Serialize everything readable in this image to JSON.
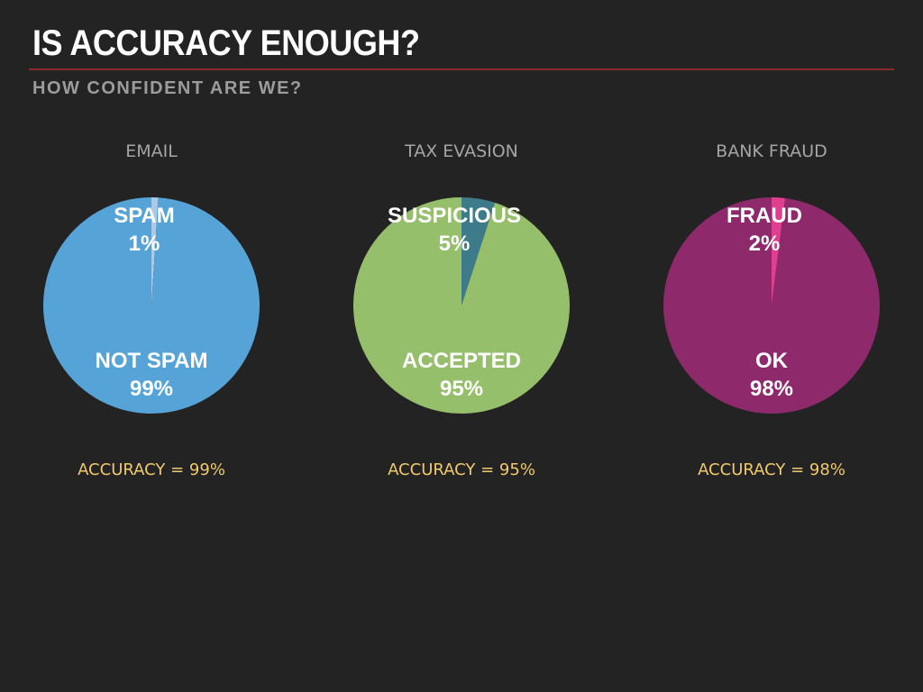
{
  "slide": {
    "title": "IS ACCURACY ENOUGH?",
    "subtitle": "HOW CONFIDENT ARE WE?"
  },
  "colors": {
    "email_main": "#56a3d8",
    "email_minor": "#a9cbe8",
    "tax_main": "#96bf6b",
    "tax_minor": "#3d7b8a",
    "fraud_main": "#8e2a6c",
    "fraud_minor": "#e03f8f",
    "accuracy_text": "#f0c96a"
  },
  "chart_data": [
    {
      "type": "pie",
      "title": "EMAIL",
      "slices": [
        {
          "label": "SPAM",
          "value": 1,
          "value_label": "1%",
          "color": "#a9cbe8"
        },
        {
          "label": "NOT SPAM",
          "value": 99,
          "value_label": "99%",
          "color": "#56a3d8"
        }
      ],
      "caption": "ACCURACY = 99%"
    },
    {
      "type": "pie",
      "title": "TAX EVASION",
      "slices": [
        {
          "label": "SUSPICIOUS",
          "value": 5,
          "value_label": "5%",
          "color": "#3d7b8a"
        },
        {
          "label": "ACCEPTED",
          "value": 95,
          "value_label": "95%",
          "color": "#96bf6b"
        }
      ],
      "caption": "ACCURACY = 95%"
    },
    {
      "type": "pie",
      "title": "BANK FRAUD",
      "slices": [
        {
          "label": "FRAUD",
          "value": 2,
          "value_label": "2%",
          "color": "#e03f8f"
        },
        {
          "label": "OK",
          "value": 98,
          "value_label": "98%",
          "color": "#8e2a6c"
        }
      ],
      "caption": "ACCURACY = 98%"
    }
  ]
}
